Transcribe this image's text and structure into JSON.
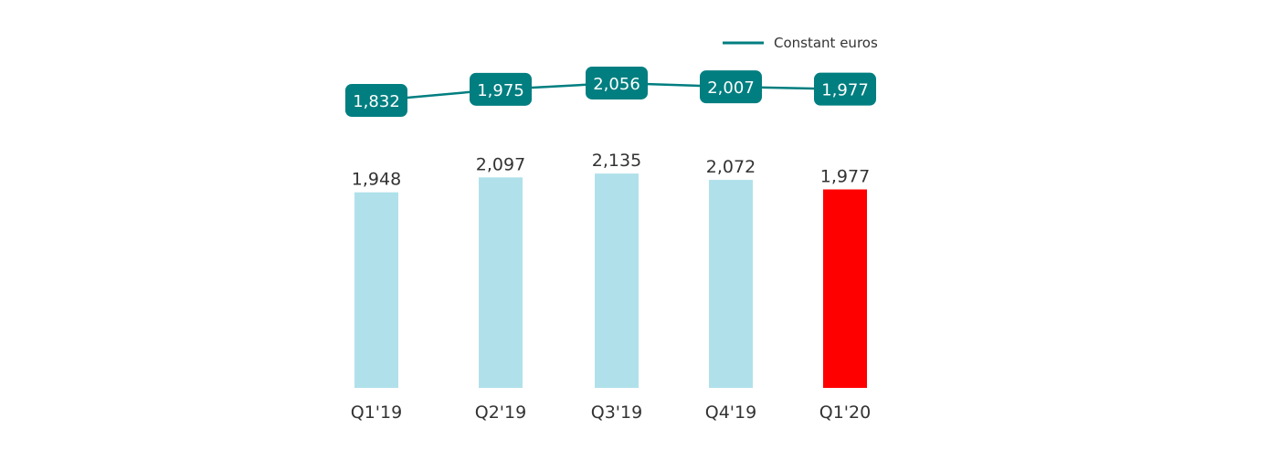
{
  "chart_data": {
    "type": "bar",
    "categories": [
      "Q1'19",
      "Q2'19",
      "Q3'19",
      "Q4'19",
      "Q1'20"
    ],
    "values": [
      1948,
      2097,
      2135,
      2072,
      1977
    ],
    "value_labels": [
      "1,948",
      "2,097",
      "2,135",
      "2,072",
      "1,977"
    ],
    "bar_colors": [
      "#b0e1ea",
      "#b0e1ea",
      "#b0e1ea",
      "#b0e1ea",
      "#ff0000"
    ],
    "line_series": {
      "name": "Constant euros",
      "values": [
        1832,
        1975,
        2056,
        2007,
        1977
      ],
      "labels": [
        "1,832",
        "1,975",
        "2,056",
        "2,007",
        "1,977"
      ],
      "color": "#007e80"
    },
    "legend": {
      "position": "top-right",
      "label": "Constant euros"
    },
    "grid": false,
    "title": "",
    "xlabel": "",
    "ylabel": ""
  }
}
